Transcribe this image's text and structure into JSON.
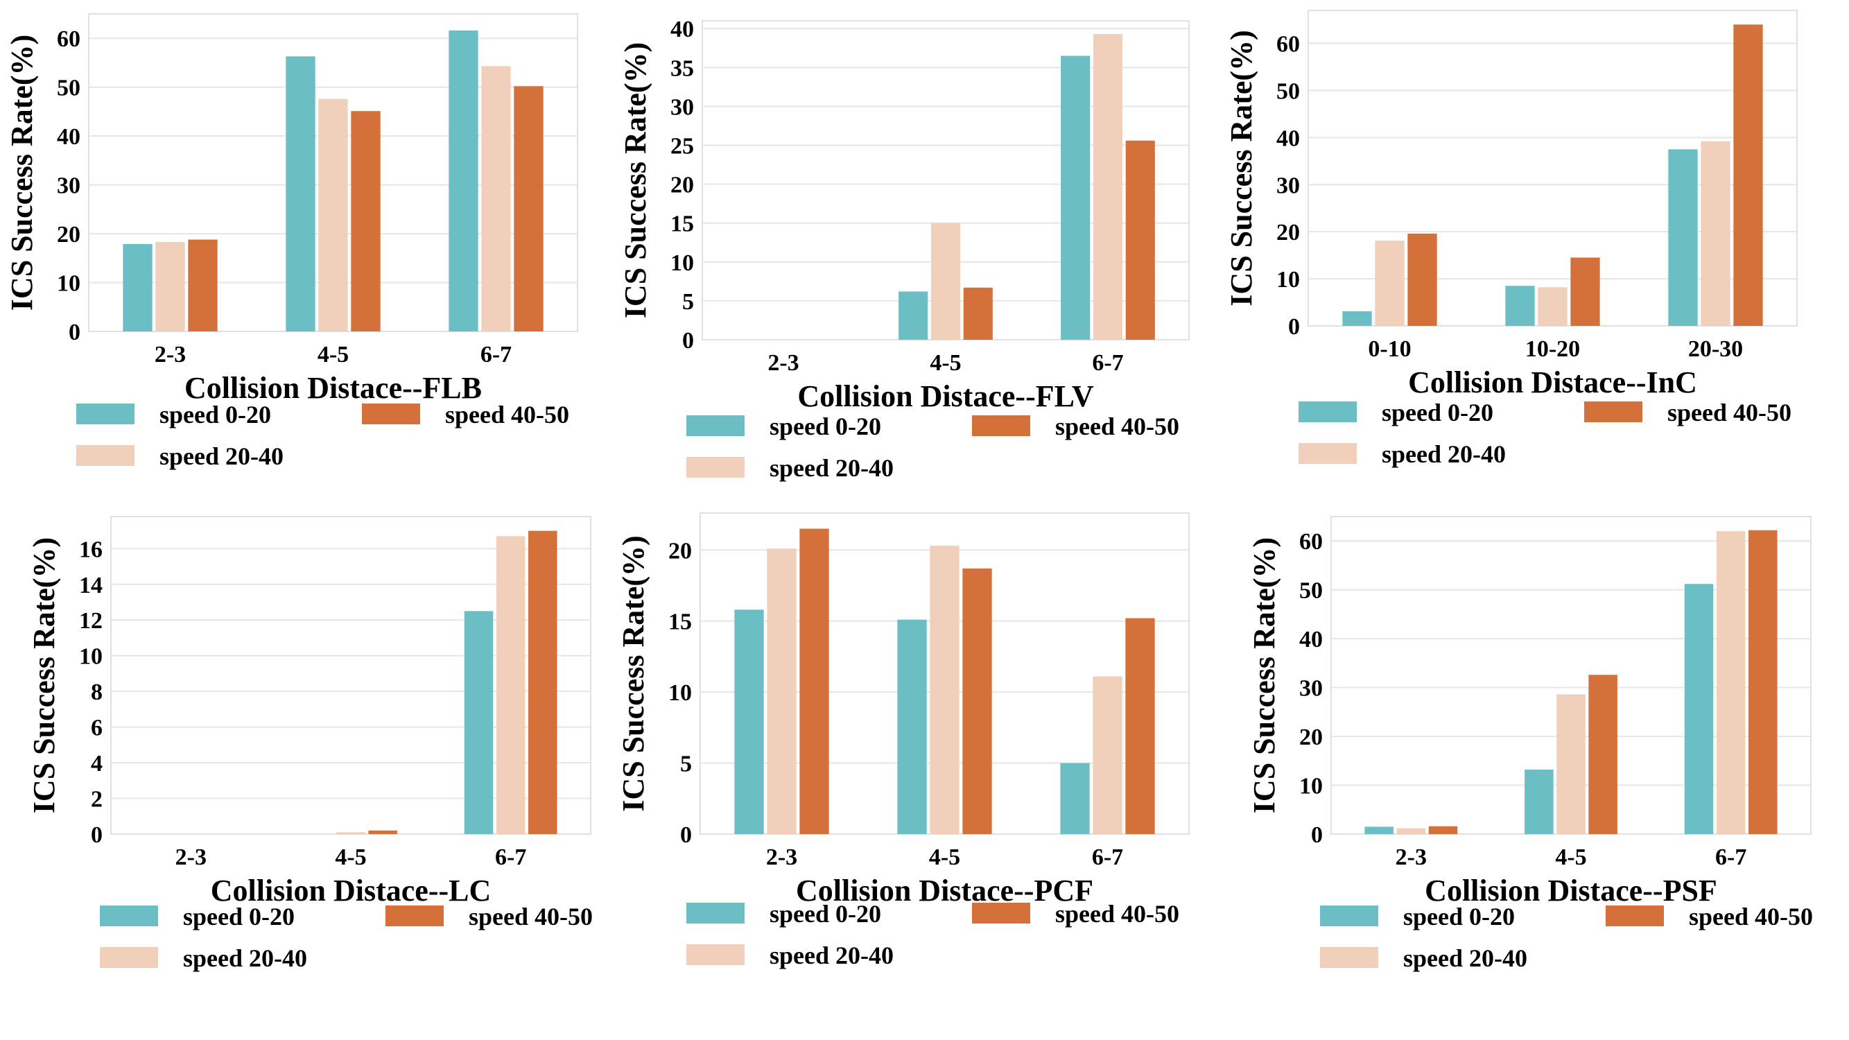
{
  "legend_labels": [
    "speed 0-20",
    "speed 20-40",
    "speed 40-50"
  ],
  "series_colors": [
    "#6cbec5",
    "#f0d0ba",
    "#d4703a"
  ],
  "chart_data": [
    {
      "type": "bar",
      "categories": [
        "2-3",
        "4-5",
        "6-7"
      ],
      "series": [
        {
          "name": "speed 0-20",
          "values": [
            17.9,
            56.3,
            61.6
          ]
        },
        {
          "name": "speed 20-40",
          "values": [
            18.3,
            47.6,
            54.3
          ]
        },
        {
          "name": "speed 40-50",
          "values": [
            18.8,
            45.1,
            50.2
          ]
        }
      ],
      "xlabel": "Collision Distace--FLB",
      "ylabel": "ICS Success Rate(%)",
      "yticks": [
        0,
        10,
        20,
        30,
        40,
        50,
        60
      ],
      "ylim": [
        0,
        65
      ],
      "grid": true,
      "legend": "below"
    },
    {
      "type": "bar",
      "categories": [
        "2-3",
        "4-5",
        "6-7"
      ],
      "series": [
        {
          "name": "speed 0-20",
          "values": [
            0,
            6.2,
            36.5
          ]
        },
        {
          "name": "speed 20-40",
          "values": [
            0,
            15.0,
            39.3
          ]
        },
        {
          "name": "speed 40-50",
          "values": [
            0,
            6.7,
            25.6
          ]
        }
      ],
      "xlabel": "Collision Distace--FLV",
      "ylabel": "ICS Success Rate(%)",
      "yticks": [
        0,
        5,
        10,
        15,
        20,
        25,
        30,
        35,
        40
      ],
      "ylim": [
        0,
        41
      ],
      "grid": true,
      "legend": "below"
    },
    {
      "type": "bar",
      "categories": [
        "0-10",
        "10-20",
        "20-30"
      ],
      "series": [
        {
          "name": "speed 0-20",
          "values": [
            3.1,
            8.5,
            37.5
          ]
        },
        {
          "name": "speed 20-40",
          "values": [
            18.1,
            8.2,
            39.2
          ]
        },
        {
          "name": "speed 40-50",
          "values": [
            19.6,
            14.5,
            64.0
          ]
        }
      ],
      "xlabel": "Collision Distace--InC",
      "ylabel": "ICS Success Rate(%)",
      "yticks": [
        0,
        10,
        20,
        30,
        40,
        50,
        60
      ],
      "ylim": [
        0,
        67
      ],
      "grid": true,
      "legend": "below"
    },
    {
      "type": "bar",
      "categories": [
        "2-3",
        "4-5",
        "6-7"
      ],
      "series": [
        {
          "name": "speed 0-20",
          "values": [
            0,
            0,
            12.5
          ]
        },
        {
          "name": "speed 20-40",
          "values": [
            0,
            0.1,
            16.7
          ]
        },
        {
          "name": "speed 40-50",
          "values": [
            0,
            0.2,
            17.0
          ]
        }
      ],
      "xlabel": "Collision Distace--LC",
      "ylabel": "ICS Success Rate(%)",
      "yticks": [
        0,
        2,
        4,
        6,
        8,
        10,
        12,
        14,
        16
      ],
      "ylim": [
        0,
        17.8
      ],
      "grid": true,
      "legend": "below"
    },
    {
      "type": "bar",
      "categories": [
        "2-3",
        "4-5",
        "6-7"
      ],
      "series": [
        {
          "name": "speed 0-20",
          "values": [
            15.8,
            15.1,
            5.0
          ]
        },
        {
          "name": "speed 20-40",
          "values": [
            20.1,
            20.3,
            11.1
          ]
        },
        {
          "name": "speed 40-50",
          "values": [
            21.5,
            18.7,
            15.2
          ]
        }
      ],
      "xlabel": "Collision Distace--PCF",
      "ylabel": "ICS Success Rate(%)",
      "yticks": [
        0,
        5,
        10,
        15,
        20
      ],
      "ylim": [
        0,
        22.6
      ],
      "grid": true,
      "legend": "below"
    },
    {
      "type": "bar",
      "categories": [
        "2-3",
        "4-5",
        "6-7"
      ],
      "series": [
        {
          "name": "speed 0-20",
          "values": [
            1.5,
            13.2,
            51.2
          ]
        },
        {
          "name": "speed 20-40",
          "values": [
            1.2,
            28.6,
            62.0
          ]
        },
        {
          "name": "speed 40-50",
          "values": [
            1.6,
            32.6,
            62.2
          ]
        }
      ],
      "xlabel": "Collision Distace--PSF",
      "ylabel": "ICS Success Rate(%)",
      "yticks": [
        0,
        10,
        20,
        30,
        40,
        50,
        60
      ],
      "ylim": [
        0,
        65
      ],
      "grid": true,
      "legend": "below"
    }
  ]
}
